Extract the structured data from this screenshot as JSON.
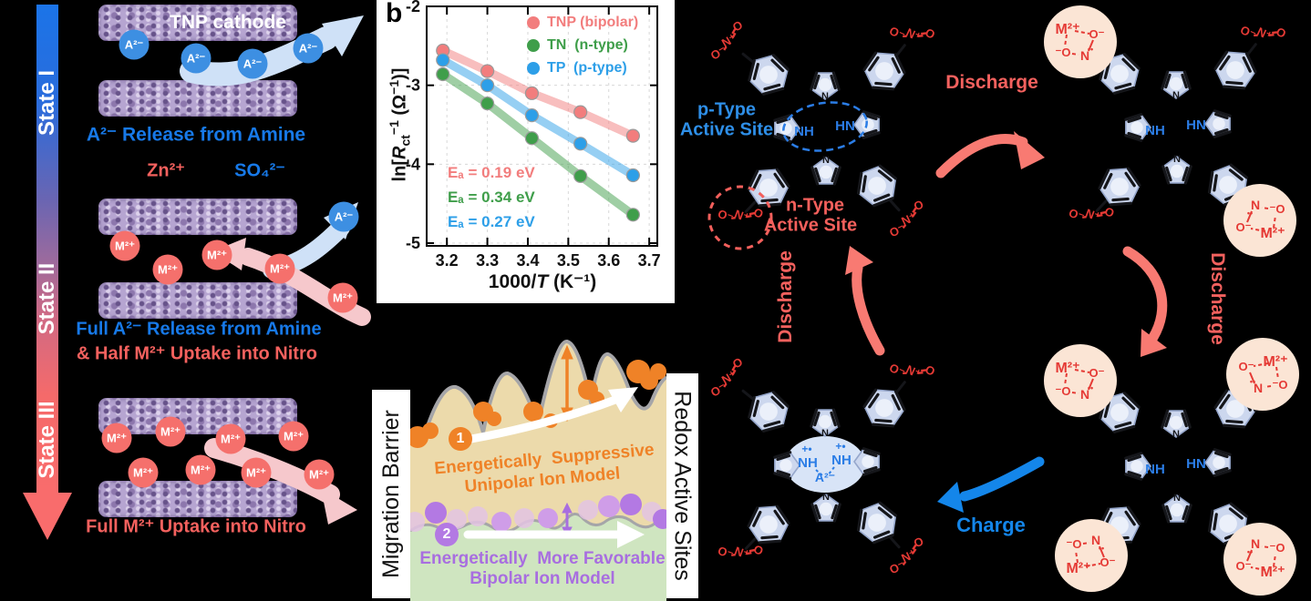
{
  "colors": {
    "background": "#000000",
    "blue_text": "#1779e8",
    "salmon_text": "#f4615e",
    "anion_circle": "#3d8fe2",
    "cation_circle": "#f5706c",
    "slab_purple": "#b6a5d1",
    "light_blue_arrow": "#cfe1f7",
    "pink_arrow": "#f6c8cc",
    "charge_blue": "#1486ea",
    "nitro_red": "#e53a35",
    "peach_circle": "#fbe5d5",
    "ring_fill": "#ccd7ee",
    "tan": "#ecdaab",
    "green": "#cfe5c0",
    "orange": "#ef8227",
    "purple": "#a86ee0"
  },
  "left_panel": {
    "states": [
      "State I",
      "State II",
      "State III"
    ],
    "cathode_label": "TNP cathode",
    "anion": "A²⁻",
    "cation": "M²⁺",
    "zn": "Zn²⁺",
    "so4": "SO₄²⁻",
    "caption_state1": "A²⁻ Release from Amine",
    "caption_state2_line1": "Full A²⁻ Release from Amine",
    "caption_state2_line2": "& Half M²⁺ Uptake into Nitro",
    "caption_state3": "Full M²⁺ Uptake into Nitro"
  },
  "chart_data": {
    "type": "scatter-line",
    "panel_label": "b",
    "title": "",
    "x": [
      3.19,
      3.3,
      3.41,
      3.53,
      3.66
    ],
    "series": [
      {
        "name": "TNP (bipolar)",
        "color": "#f27d7d",
        "values": [
          -2.56,
          -2.82,
          -3.1,
          -3.34,
          -3.64
        ],
        "ea_label": "Eₐ = 0.19 eV"
      },
      {
        "name": "TN  (n-type)",
        "color": "#3f9e4a",
        "values": [
          -2.86,
          -3.23,
          -3.67,
          -4.15,
          -4.64
        ],
        "ea_label": "Eₐ = 0.34 eV"
      },
      {
        "name": "TP  (p-type)",
        "color": "#2d9fe8",
        "values": [
          -2.68,
          -3.0,
          -3.38,
          -3.74,
          -4.14
        ],
        "ea_label": "Eₐ = 0.27 eV"
      }
    ],
    "xlabel": "1000/T (K⁻¹)",
    "xlabel_parts": {
      "p1": "1000/",
      "t": "T",
      "p2": " (K⁻¹)"
    },
    "ylabel": "ln[Rct⁻¹ (Ω⁻¹)]",
    "ylabel_parts": {
      "p1": "ln[",
      "r": "R",
      "sub": "ct",
      "sup1": "−1",
      "p2": " (Ω",
      "sup2": "−1",
      "p3": ")]"
    },
    "xlim": [
      3.15,
      3.72
    ],
    "ylim": [
      -5,
      -2
    ],
    "xticks": [
      "3.2",
      "3.3",
      "3.4",
      "3.5",
      "3.6",
      "3.7"
    ],
    "yticks": [
      "-2",
      "-3",
      "-4",
      "-5"
    ],
    "grid": true,
    "legend_position": "top-right"
  },
  "barrier_panel": {
    "left_axis": "Migration Barrier",
    "right_axis": "Redox Active Sites",
    "unipolar": {
      "number": "1",
      "line1": "Energetically  Suppressive",
      "line2": "Unipolar Ion Model"
    },
    "bipolar": {
      "number": "2",
      "line1": "Energetically  More Favorable",
      "line2": "Bipolar Ion Model"
    }
  },
  "cycle_panel": {
    "discharge_top": "Discharge",
    "discharge_right": "Discharge",
    "discharge_left": "Discharge",
    "charge": "Charge",
    "p_type": {
      "line1": "p-Type",
      "line2": "Active Site"
    },
    "n_type": {
      "line1": "n-Type",
      "line2": "Active Site"
    },
    "chem": {
      "nh": "NH",
      "hn": "HN",
      "n": "N",
      "radical": "+•",
      "anion": "A²⁻",
      "metal": "M²⁺",
      "o": "O",
      "o_minus": "O⁻",
      "minus_o": "⁻O",
      "n_plus": "N⁺",
      "dots": "••"
    }
  }
}
